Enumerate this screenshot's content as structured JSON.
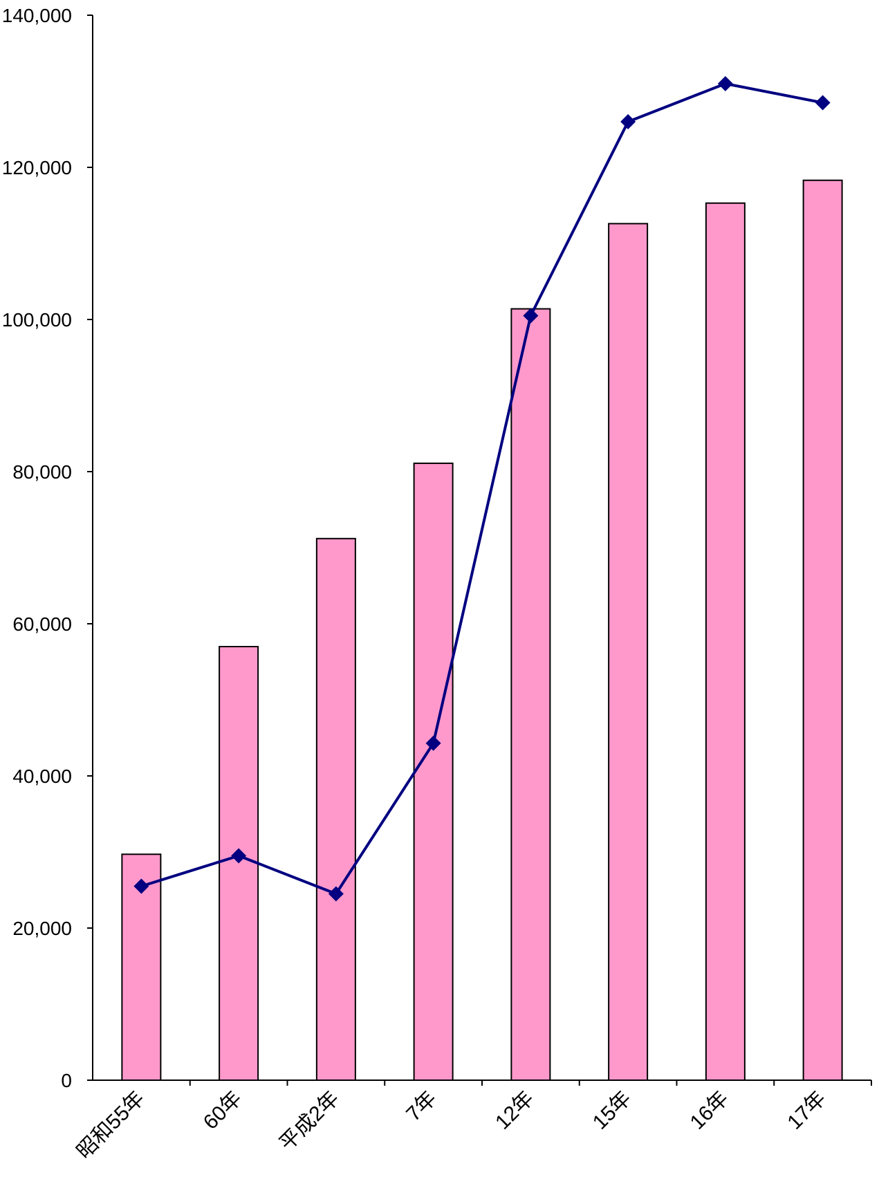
{
  "chart_data": {
    "type": "bar",
    "categories": [
      "昭和55年",
      "60年",
      "平成2年",
      "7年",
      "12年",
      "15年",
      "16年",
      "17年"
    ],
    "series": [
      {
        "type": "bar",
        "color": "#ff99cc",
        "values": [
          29700,
          57000,
          71200,
          81100,
          101400,
          112600,
          115300,
          118300
        ]
      },
      {
        "type": "line",
        "color": "#000080",
        "marker": "diamond",
        "values": [
          25500,
          29500,
          24500,
          44300,
          100500,
          126000,
          131000,
          128500
        ]
      }
    ],
    "y_ticks": [
      "0",
      "20,000",
      "40,000",
      "60,000",
      "80,000",
      "100,000",
      "120,000",
      "140,000"
    ],
    "ylim": [
      0,
      140000
    ],
    "grid": false,
    "legend": "none",
    "title": "",
    "xlabel": "",
    "ylabel": ""
  }
}
